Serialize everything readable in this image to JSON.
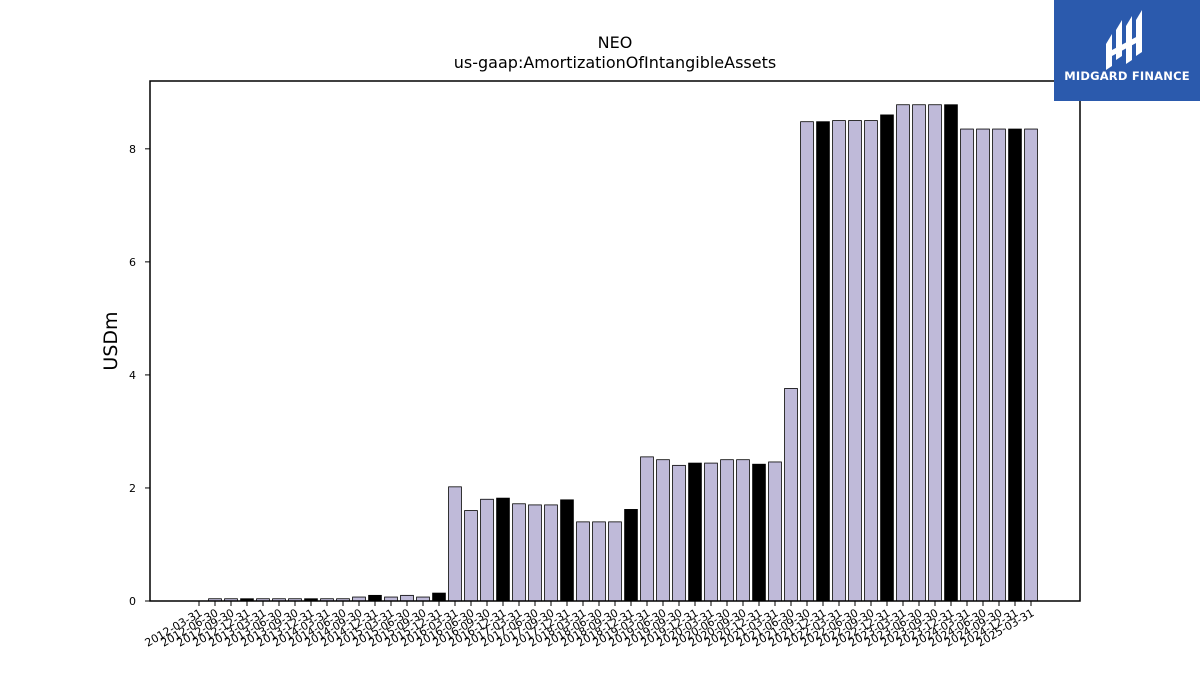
{
  "chart_data": {
    "type": "bar",
    "title": "NEO",
    "subtitle": "us-gaap:AmortizationOfIntangibleAssets",
    "xlabel": "",
    "ylabel": "USDm",
    "ylim": [
      0,
      9.2
    ],
    "yticks": [
      0,
      2,
      4,
      6,
      8
    ],
    "grid": false,
    "categories": [
      "2012-03-31",
      "2012-06-30",
      "2012-09-30",
      "2012-12-31",
      "2013-03-31",
      "2013-06-30",
      "2013-09-30",
      "2013-12-31",
      "2014-03-31",
      "2014-06-30",
      "2014-09-30",
      "2014-12-31",
      "2015-03-31",
      "2015-06-30",
      "2015-09-30",
      "2015-12-31",
      "2016-03-31",
      "2016-06-30",
      "2016-09-30",
      "2016-12-31",
      "2017-03-31",
      "2017-06-30",
      "2017-09-30",
      "2017-12-31",
      "2018-03-31",
      "2018-06-30",
      "2018-09-30",
      "2018-12-31",
      "2019-03-31",
      "2019-06-30",
      "2019-09-30",
      "2019-12-31",
      "2020-03-31",
      "2020-06-30",
      "2020-09-30",
      "2020-12-31",
      "2021-03-31",
      "2021-06-30",
      "2021-09-30",
      "2021-12-31",
      "2022-03-31",
      "2022-06-30",
      "2022-09-30",
      "2022-12-31",
      "2023-03-31",
      "2023-06-30",
      "2023-09-30",
      "2023-12-31",
      "2024-03-31",
      "2024-06-30",
      "2024-09-30",
      "2024-12-31",
      "2025-03-31"
    ],
    "values": [
      0.0,
      0.04,
      0.04,
      0.04,
      0.04,
      0.04,
      0.04,
      0.04,
      0.04,
      0.04,
      0.07,
      0.1,
      0.07,
      0.1,
      0.07,
      0.14,
      2.02,
      1.6,
      1.8,
      1.82,
      1.72,
      1.7,
      1.7,
      1.79,
      1.4,
      1.4,
      1.4,
      1.62,
      2.55,
      2.5,
      2.4,
      2.44,
      2.44,
      2.5,
      2.5,
      2.42,
      2.46,
      3.76,
      8.48,
      8.48,
      8.5,
      8.5,
      8.5,
      8.6,
      8.78,
      8.78,
      8.78,
      8.78,
      8.35,
      8.35,
      8.35,
      8.35,
      8.35
    ],
    "highlight": [
      false,
      false,
      false,
      true,
      false,
      false,
      false,
      true,
      false,
      false,
      false,
      true,
      false,
      false,
      false,
      true,
      false,
      false,
      false,
      true,
      false,
      false,
      false,
      true,
      false,
      false,
      false,
      true,
      false,
      false,
      false,
      true,
      false,
      false,
      false,
      true,
      false,
      false,
      false,
      true,
      false,
      false,
      false,
      true,
      false,
      false,
      false,
      true,
      false,
      false,
      false,
      true,
      false
    ],
    "colors": {
      "bar": "#bfbad9",
      "highlight": "#000000",
      "edge": "#000000"
    }
  },
  "logo": {
    "text": "MIDGARD FINANCE",
    "bg_color": "#2b5aad"
  }
}
